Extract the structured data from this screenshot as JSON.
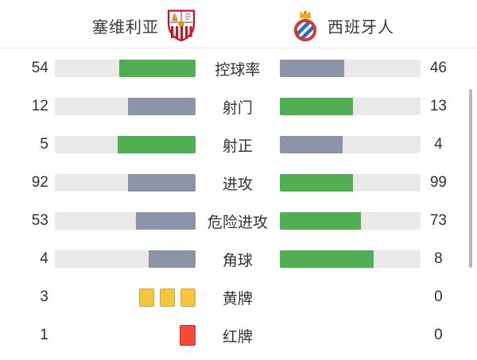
{
  "header": {
    "home_team": "塞维利亚",
    "away_team": "西班牙人",
    "home_crest": "sevilla-crest",
    "away_crest": "espanyol-crest"
  },
  "colors": {
    "leading_bar": "#52ae52",
    "trailing_bar": "#8c94a8",
    "bar_track": "#e9e9e9",
    "yellow_card": "#f5c63c",
    "red_card": "#f5493a",
    "text": "#333333"
  },
  "stats": {
    "rows": [
      {
        "type": "bar",
        "label": "控球率",
        "home": "54",
        "away": "46"
      },
      {
        "type": "bar",
        "label": "射门",
        "home": "12",
        "away": "13"
      },
      {
        "type": "bar",
        "label": "射正",
        "home": "5",
        "away": "4"
      },
      {
        "type": "bar",
        "label": "进攻",
        "home": "92",
        "away": "99"
      },
      {
        "type": "bar",
        "label": "危险进攻",
        "home": "53",
        "away": "73"
      },
      {
        "type": "bar",
        "label": "角球",
        "home": "4",
        "away": "8"
      },
      {
        "type": "cards",
        "label": "黄牌",
        "home": "3",
        "away": "0",
        "card": "yellow",
        "home_cards": 3,
        "away_cards": 0
      },
      {
        "type": "cards",
        "label": "红牌",
        "home": "1",
        "away": "0",
        "card": "red",
        "home_cards": 1,
        "away_cards": 0
      }
    ]
  },
  "chart_data": {
    "type": "bar",
    "subtype": "head-to-head match stats, bars grow outward from center, share = value/(home+away), leading side green, trailing side gray",
    "title": "塞维利亚 vs 西班牙人",
    "categories": [
      "控球率",
      "射门",
      "射正",
      "进攻",
      "危险进攻",
      "角球",
      "黄牌",
      "红牌"
    ],
    "series": [
      {
        "name": "塞维利亚",
        "values": [
          54,
          12,
          5,
          92,
          53,
          4,
          3,
          1
        ]
      },
      {
        "name": "西班牙人",
        "values": [
          46,
          13,
          4,
          99,
          73,
          8,
          0,
          0
        ]
      }
    ]
  }
}
